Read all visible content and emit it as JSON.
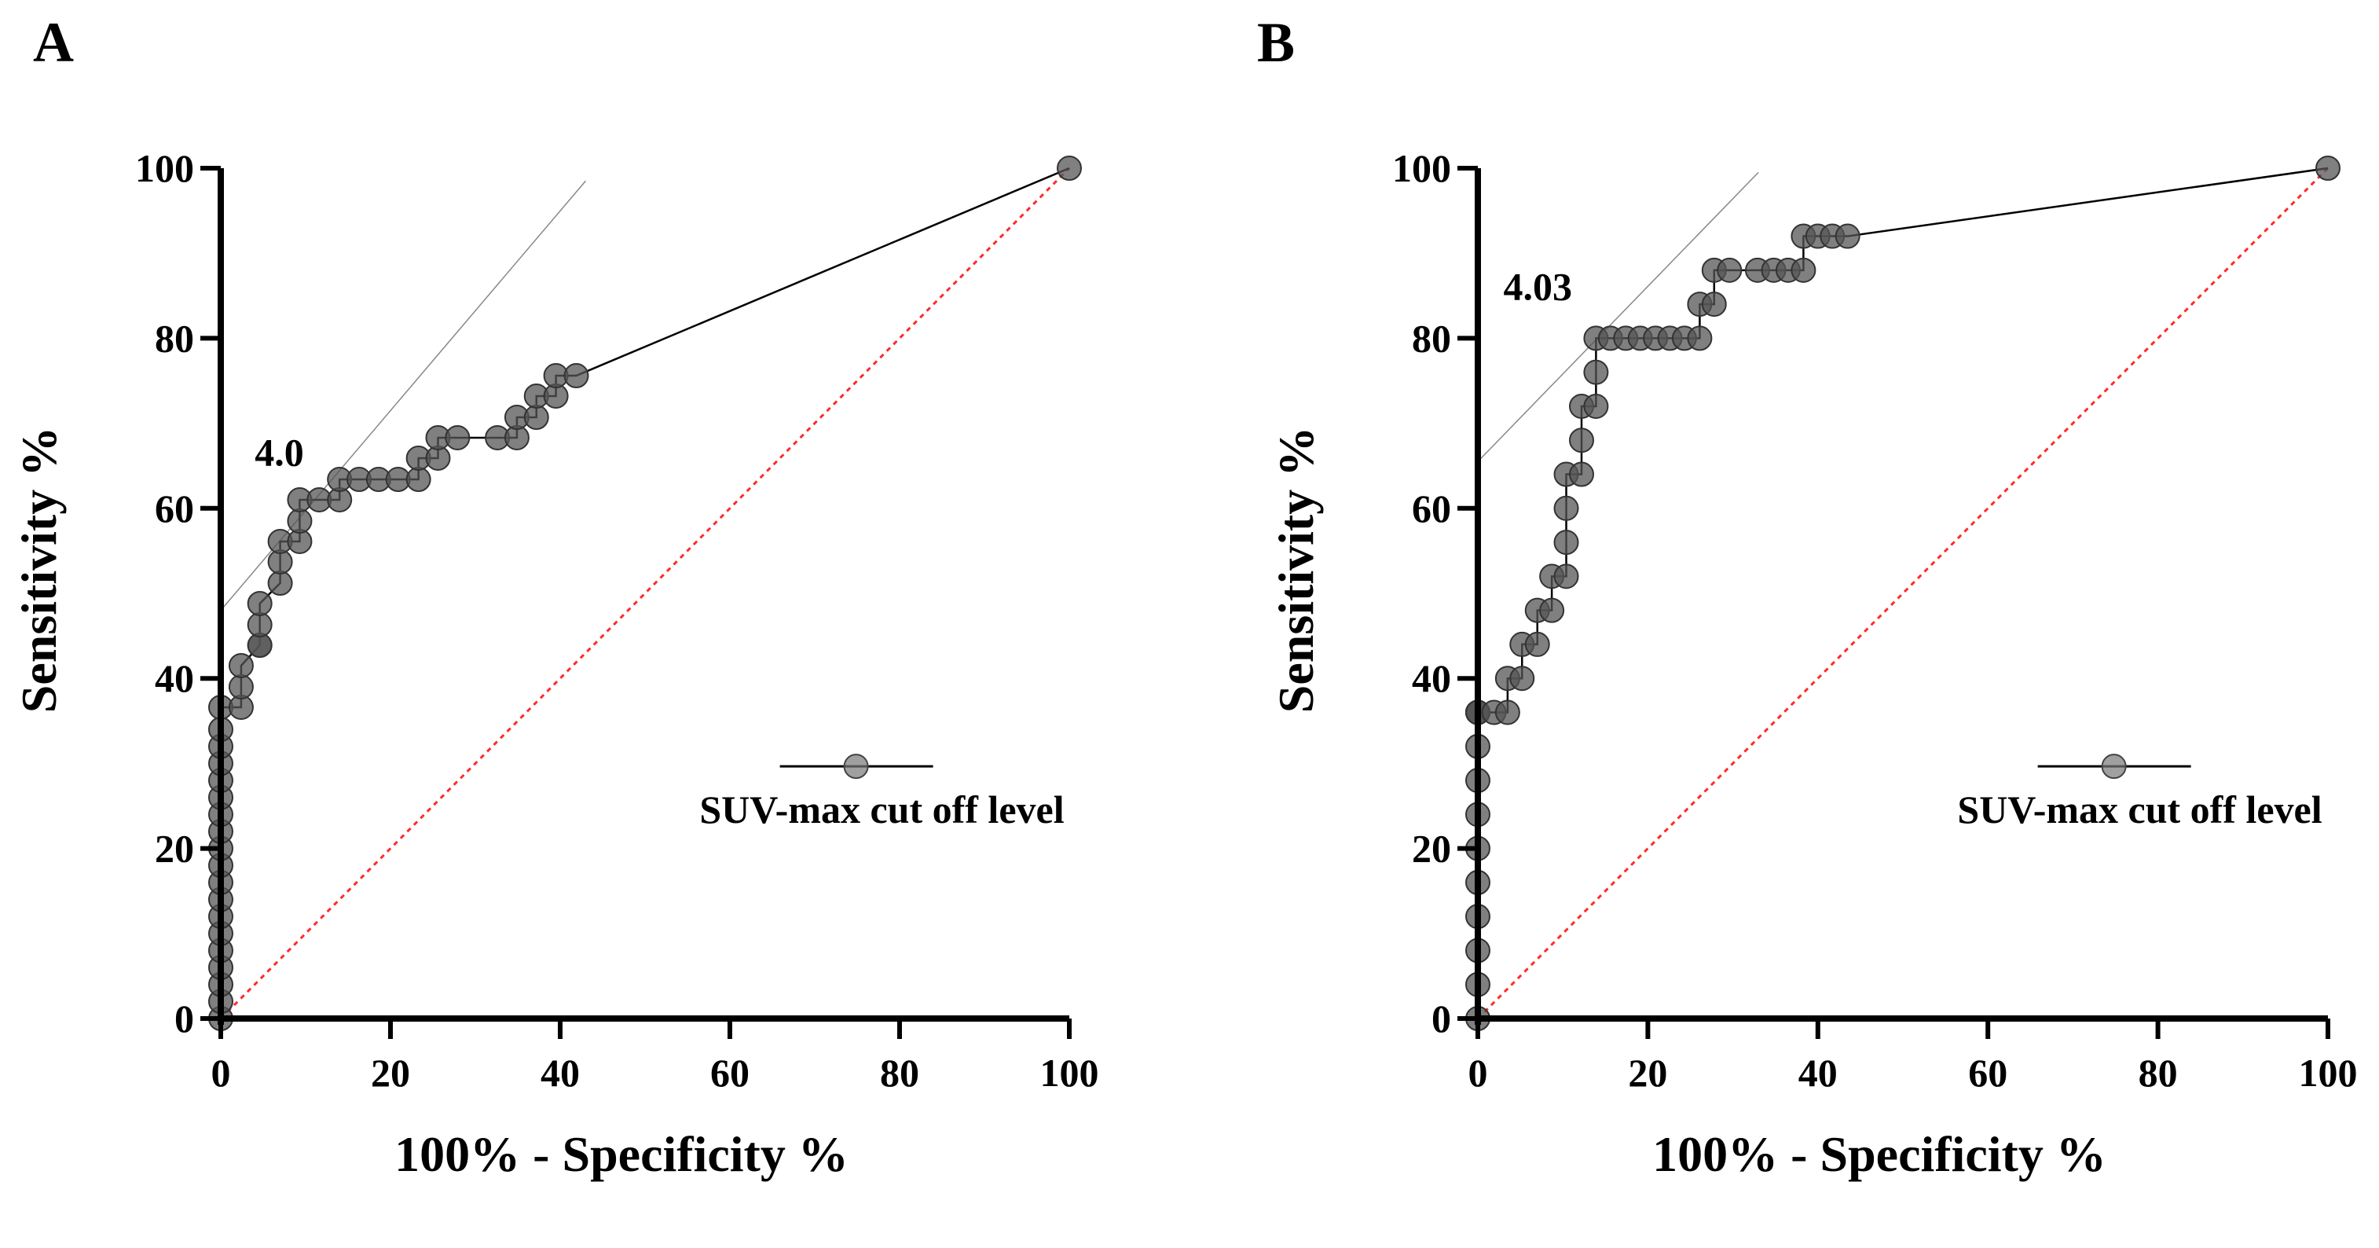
{
  "chart_data": [
    {
      "panel": "A",
      "type": "line",
      "xlabel": "100% - Specificity %",
      "ylabel": "Sensitivity %",
      "xlim": [
        0,
        100
      ],
      "ylim": [
        0,
        100
      ],
      "xticks": [
        "0",
        "20",
        "40",
        "60",
        "80",
        "100"
      ],
      "yticks": [
        "0",
        "20",
        "40",
        "60",
        "80",
        "100"
      ],
      "legend": {
        "label": "SUV-max cut off level",
        "position": "bottom-right"
      },
      "annotation": {
        "text": "4.0",
        "x": 4,
        "y": 65
      },
      "tangent": {
        "x1": 0,
        "y1": 48,
        "x2": 43,
        "y2": 98.5
      },
      "reference_line": {
        "x1": 0,
        "y1": 0,
        "x2": 100,
        "y2": 100
      },
      "series": [
        {
          "name": "SUV-max cut off level",
          "x": [
            0,
            0,
            0,
            0,
            0,
            0,
            0,
            0,
            0,
            0,
            0,
            0,
            0,
            0,
            0,
            0,
            0,
            0,
            0,
            2.4,
            2.4,
            2.4,
            4.6,
            4.6,
            4.6,
            4.6,
            7,
            7,
            7,
            9.3,
            9.3,
            9.3,
            11.6,
            14,
            14,
            16.3,
            18.6,
            20.9,
            23.3,
            23.3,
            25.6,
            25.6,
            27.9,
            32.6,
            34.9,
            34.9,
            37.2,
            37.2,
            39.5,
            39.5,
            41.9,
            100
          ],
          "y": [
            0,
            2,
            4,
            6,
            8,
            10,
            12,
            14,
            16,
            18,
            20,
            22,
            24,
            26,
            28,
            30,
            32,
            34,
            36.6,
            36.6,
            39,
            41.5,
            43.9,
            43.9,
            46.3,
            48.8,
            51.2,
            53.7,
            56.1,
            56.1,
            58.5,
            61,
            61,
            61,
            63.4,
            63.4,
            63.4,
            63.4,
            63.4,
            65.9,
            65.9,
            68.3,
            68.3,
            68.3,
            68.3,
            70.7,
            70.7,
            73.2,
            73.2,
            75.6,
            75.6,
            100
          ]
        }
      ]
    },
    {
      "panel": "B",
      "type": "line",
      "xlabel": "100% - Specificity %",
      "ylabel": "Sensitivity %",
      "xlim": [
        0,
        100
      ],
      "ylim": [
        0,
        100
      ],
      "xticks": [
        "0",
        "20",
        "40",
        "60",
        "80",
        "100"
      ],
      "yticks": [
        "0",
        "20",
        "40",
        "60",
        "80",
        "100"
      ],
      "legend": {
        "label": "SUV-max cut off level",
        "position": "bottom-right"
      },
      "annotation": {
        "text": "4.03",
        "x": 3,
        "y": 84.5
      },
      "tangent": {
        "x1": 0,
        "y1": 65.5,
        "x2": 33,
        "y2": 99.5
      },
      "reference_line": {
        "x1": 0,
        "y1": 0,
        "x2": 100,
        "y2": 100
      },
      "series": [
        {
          "name": "SUV-max cut off level",
          "x": [
            0,
            0,
            0,
            0,
            0,
            0,
            0,
            0,
            0,
            0,
            0,
            0,
            0,
            1.9,
            3.5,
            3.5,
            5.2,
            5.2,
            7,
            7,
            8.7,
            8.7,
            10.4,
            10.4,
            10.4,
            10.4,
            12.2,
            12.2,
            12.2,
            13.9,
            13.9,
            13.9,
            15.6,
            17.4,
            19.1,
            20.9,
            22.6,
            24.3,
            26.1,
            26.1,
            27.8,
            27.8,
            29.6,
            32.9,
            34.8,
            36.5,
            38.3,
            38.3,
            40,
            41.7,
            43.5,
            100
          ],
          "y": [
            0,
            4,
            8,
            12,
            16,
            20,
            24,
            28,
            32,
            36,
            36,
            36,
            36,
            36,
            36,
            40,
            40,
            44,
            44,
            48,
            48,
            52,
            52,
            56,
            60,
            64,
            64,
            68,
            72,
            72,
            76,
            80,
            80,
            80,
            80,
            80,
            80,
            80,
            80,
            84,
            84,
            88,
            88,
            88,
            88,
            88,
            88,
            92,
            92,
            92,
            92,
            100
          ]
        }
      ]
    }
  ]
}
